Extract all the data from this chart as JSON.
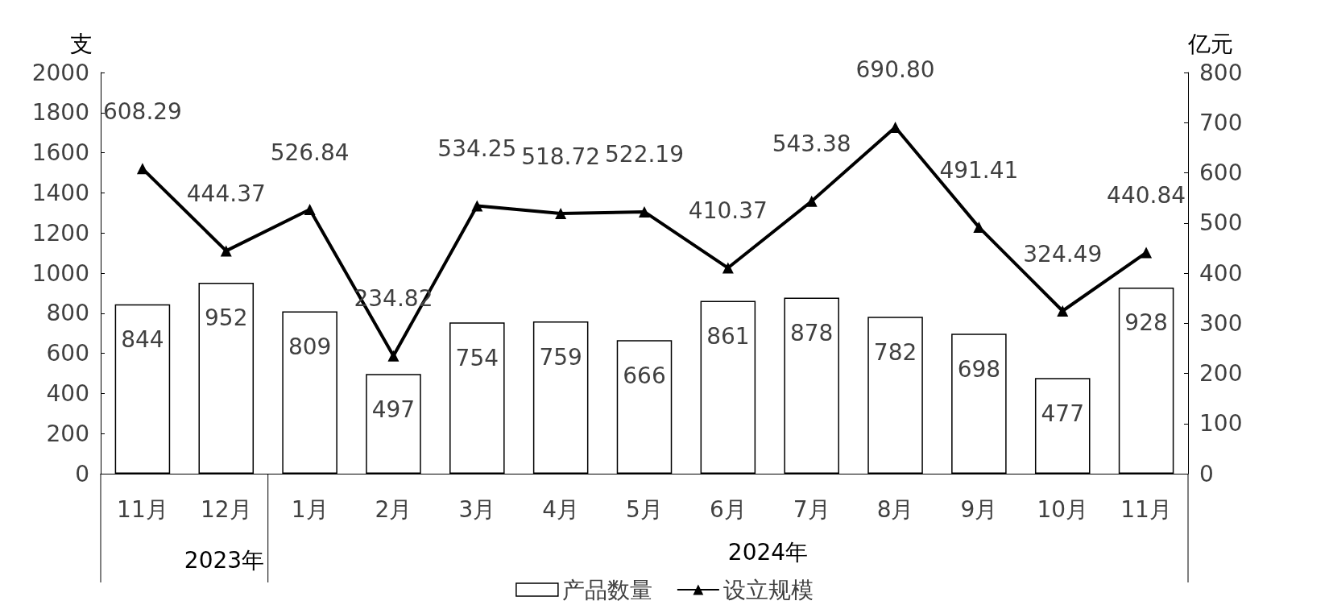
{
  "chart_data": {
    "type": "bar",
    "categories": [
      "11月",
      "12月",
      "1月",
      "2月",
      "3月",
      "4月",
      "5月",
      "6月",
      "7月",
      "8月",
      "9月",
      "10月",
      "11月"
    ],
    "ylabel": "支",
    "y2label": "亿元",
    "ylim": [
      0,
      2000
    ],
    "yticks": [
      0,
      200,
      400,
      600,
      800,
      1000,
      1200,
      1400,
      1600,
      1800,
      2000
    ],
    "y2lim": [
      0,
      800
    ],
    "y2ticks": [
      0,
      100,
      200,
      300,
      400,
      500,
      600,
      700,
      800
    ],
    "series": [
      {
        "name": "产品数量",
        "color": "#ffffff",
        "values": [
          844,
          952,
          809,
          497,
          754,
          759,
          666,
          861,
          878,
          782,
          698,
          477,
          928
        ]
      },
      {
        "name": "设立规模",
        "type": "line",
        "axis": "y2",
        "color": "#000000",
        "marker": "triangle",
        "values": [
          608.29,
          444.37,
          526.84,
          234.82,
          534.25,
          518.72,
          522.19,
          410.37,
          543.38,
          690.8,
          491.41,
          324.49,
          440.84
        ],
        "value_labels": [
          "608.29",
          "444.37",
          "526.84",
          "234.82",
          "534.25",
          "518.72",
          "522.19",
          "410.37",
          "543.38",
          "690.80",
          "491.41",
          "324.49",
          "440.84"
        ]
      }
    ],
    "data_labels": true,
    "grid": false,
    "legend": "bottom",
    "annotations": [
      "2023年",
      "2024年"
    ]
  }
}
